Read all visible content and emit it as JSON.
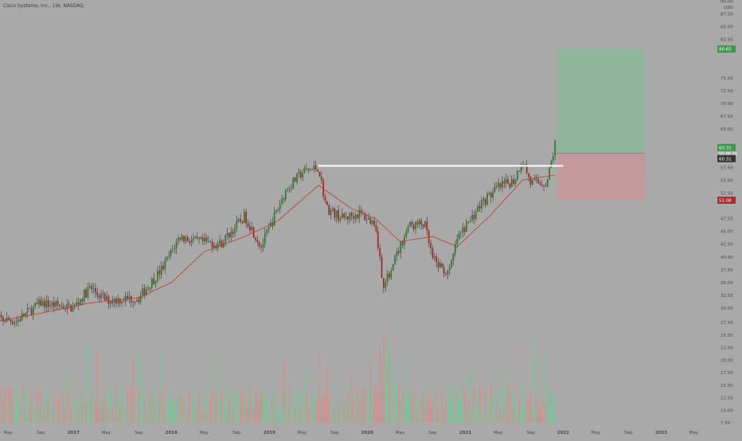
{
  "header": {
    "symbol_label": "Cisco Systems, Inc., 1W, NASDAQ",
    "currency": "USD"
  },
  "colors": {
    "background": "#a9a9a9",
    "up": "#26a69a",
    "down": "#ef5350",
    "candle_up": "#2e7d32",
    "candle_down": "#a52a2a",
    "ma": "#c0392b",
    "volume_up": "#7fbf9a",
    "volume_down": "#d09090",
    "target_zone": "#8fb59a",
    "stop_zone": "#c4999c",
    "level_line": "#ffffff",
    "axis_text": "#4a4a4a"
  },
  "chart_data": {
    "type": "candlestick",
    "interval": "1W",
    "exchange": "NASDAQ",
    "x_ticks": [
      "May",
      "Sep",
      "2017",
      "May",
      "Sep",
      "2018",
      "May",
      "Sep",
      "2019",
      "May",
      "Sep",
      "2020",
      "May",
      "Sep",
      "2021",
      "May",
      "Sep",
      "2022",
      "May",
      "Sep",
      "2023",
      "May"
    ],
    "price_axis": [
      {
        "label": "90.00",
        "value": 90
      },
      {
        "label": "87.50",
        "value": 87.5
      },
      {
        "label": "85.00",
        "value": 85
      },
      {
        "label": "82.50",
        "value": 82.5
      },
      {
        "label": "75.00",
        "value": 75
      },
      {
        "label": "72.50",
        "value": 72.5
      },
      {
        "label": "70.00",
        "value": 70
      },
      {
        "label": "67.50",
        "value": 67.5
      },
      {
        "label": "65.00",
        "value": 65
      },
      {
        "label": "57.50",
        "value": 57.5
      },
      {
        "label": "55.00",
        "value": 55
      },
      {
        "label": "52.50",
        "value": 52.5
      },
      {
        "label": "47.50",
        "value": 47.5
      },
      {
        "label": "45.00",
        "value": 45
      },
      {
        "label": "42.50",
        "value": 42.5
      },
      {
        "label": "40.00",
        "value": 40
      },
      {
        "label": "37.50",
        "value": 37.5
      },
      {
        "label": "35.00",
        "value": 35
      },
      {
        "label": "32.50",
        "value": 32.5
      },
      {
        "label": "30.00",
        "value": 30
      }
    ],
    "volume_axis": [
      {
        "label": "27.50",
        "value": 27.5
      },
      {
        "label": "25.00",
        "value": 25
      },
      {
        "label": "22.50",
        "value": 22.5
      },
      {
        "label": "20.00",
        "value": 20
      },
      {
        "label": "17.50",
        "value": 17.5
      },
      {
        "label": "15.00",
        "value": 15
      },
      {
        "label": "12.50",
        "value": 12.5
      },
      {
        "label": "10.00",
        "value": 10
      },
      {
        "label": "7.50",
        "value": 7.5
      }
    ],
    "anchors": [
      {
        "x": "2016-03",
        "price": 28.0
      },
      {
        "x": "2016-06",
        "price": 27.5
      },
      {
        "x": "2016-09",
        "price": 31.0
      },
      {
        "x": "2017-01",
        "price": 30.0
      },
      {
        "x": "2017-03",
        "price": 34.0
      },
      {
        "x": "2017-05",
        "price": 31.5
      },
      {
        "x": "2017-09",
        "price": 32.0
      },
      {
        "x": "2017-12",
        "price": 38.0
      },
      {
        "x": "2018-02",
        "price": 44.0
      },
      {
        "x": "2018-04",
        "price": 43.0
      },
      {
        "x": "2018-07",
        "price": 42.5
      },
      {
        "x": "2018-10",
        "price": 48.0
      },
      {
        "x": "2018-12",
        "price": 42.0
      },
      {
        "x": "2019-03",
        "price": 53.0
      },
      {
        "x": "2019-05",
        "price": 56.5
      },
      {
        "x": "2019-07",
        "price": 57.5
      },
      {
        "x": "2019-08",
        "price": 49.5
      },
      {
        "x": "2019-10",
        "price": 47.5
      },
      {
        "x": "2019-12",
        "price": 48.5
      },
      {
        "x": "2020-02",
        "price": 46.5
      },
      {
        "x": "2020-03",
        "price": 34.0
      },
      {
        "x": "2020-06",
        "price": 46.0
      },
      {
        "x": "2020-08",
        "price": 46.5
      },
      {
        "x": "2020-09",
        "price": 39.5
      },
      {
        "x": "2020-11",
        "price": 36.5
      },
      {
        "x": "2020-12",
        "price": 43.5
      },
      {
        "x": "2021-03",
        "price": 50.5
      },
      {
        "x": "2021-05",
        "price": 53.5
      },
      {
        "x": "2021-07",
        "price": 55.0
      },
      {
        "x": "2021-08",
        "price": 59.0
      },
      {
        "x": "2021-09",
        "price": 54.5
      },
      {
        "x": "2021-11",
        "price": 54.5
      },
      {
        "x": "2021-12",
        "price": 62.0
      }
    ],
    "moving_average": {
      "points": [
        {
          "x": "2016-03",
          "price": 27.2
        },
        {
          "x": "2016-09",
          "price": 29.0
        },
        {
          "x": "2017-03",
          "price": 31.0
        },
        {
          "x": "2017-09",
          "price": 32.0
        },
        {
          "x": "2018-01",
          "price": 35.0
        },
        {
          "x": "2018-05",
          "price": 41.0
        },
        {
          "x": "2018-10",
          "price": 44.0
        },
        {
          "x": "2019-02",
          "price": 47.0
        },
        {
          "x": "2019-07",
          "price": 54.0
        },
        {
          "x": "2019-11",
          "price": 49.5
        },
        {
          "x": "2020-02",
          "price": 47.5
        },
        {
          "x": "2020-05",
          "price": 43.0
        },
        {
          "x": "2020-09",
          "price": 44.0
        },
        {
          "x": "2020-12",
          "price": 42.0
        },
        {
          "x": "2021-04",
          "price": 48.0
        },
        {
          "x": "2021-08",
          "price": 55.0
        },
        {
          "x": "2021-12",
          "price": 56.0
        }
      ]
    },
    "horizontal_level": {
      "price": 57.8,
      "from": "2019-07",
      "to": "2022-01"
    },
    "position": {
      "entry_label": "60.31",
      "entry_price": 60.31,
      "target_label": "80.65",
      "target_price": 80.65,
      "stop_label": "51.08",
      "stop_price": 51.08,
      "countdown": "5D 00:35",
      "from": "2021-12",
      "to": "2022-11"
    }
  }
}
